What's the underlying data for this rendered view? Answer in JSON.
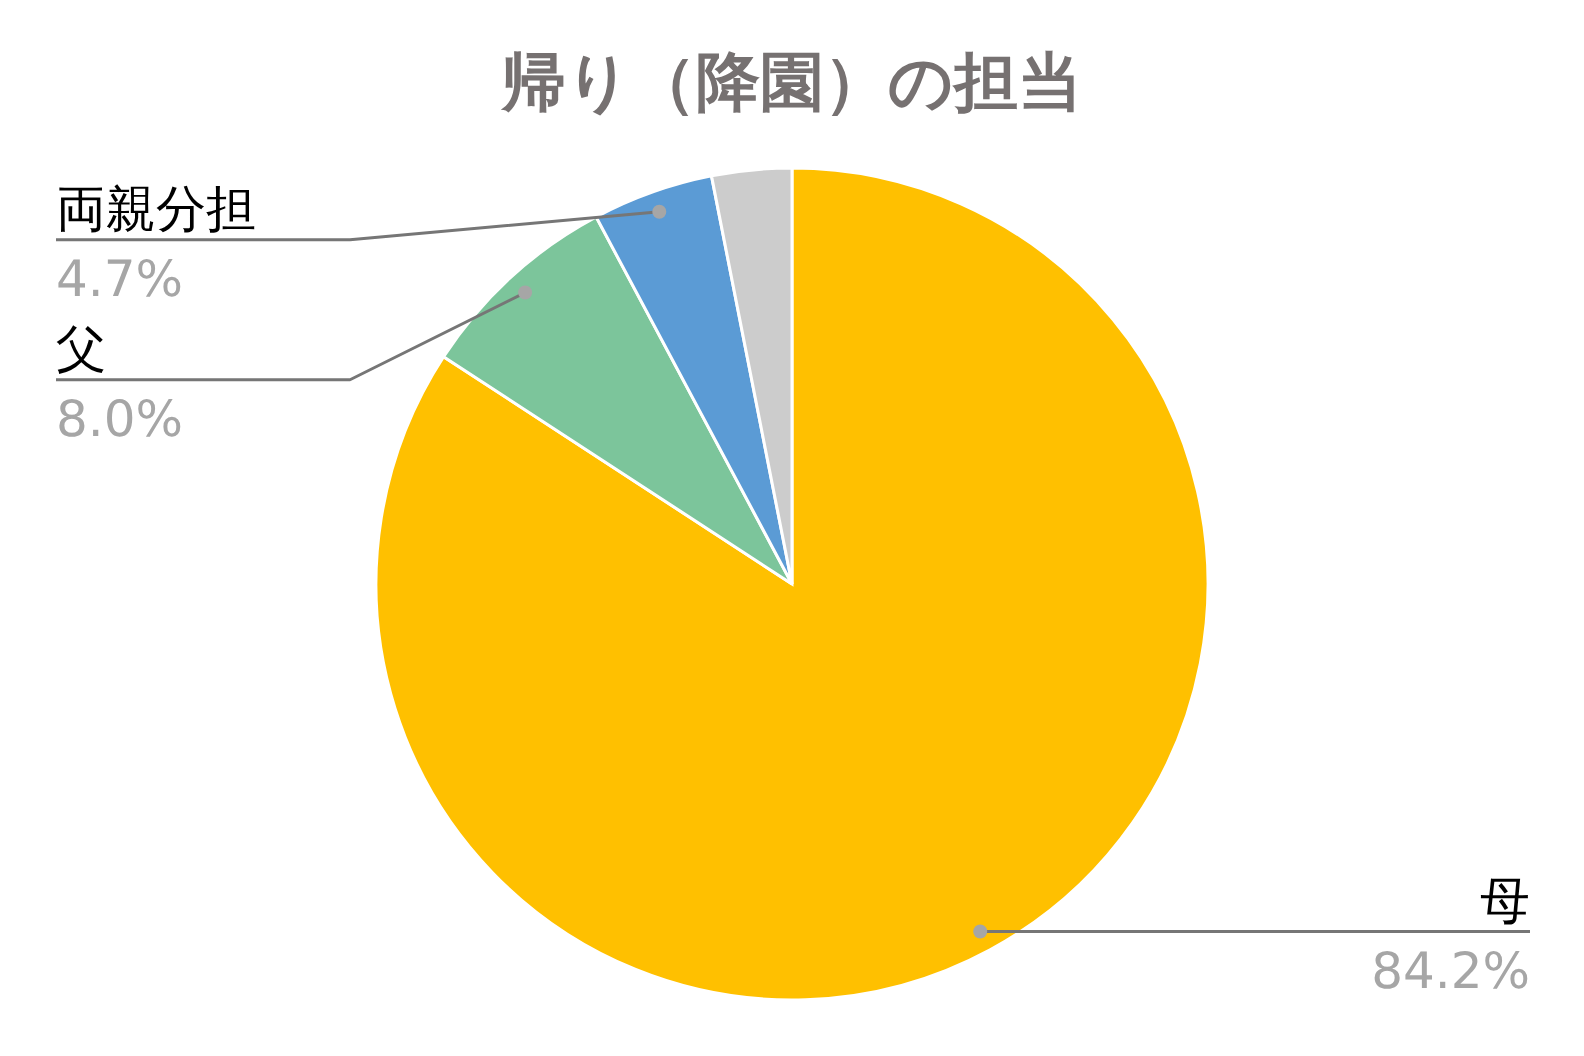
{
  "chart_data": {
    "type": "pie",
    "title": "帰り（降園）の担当",
    "categories": [
      "母",
      "父",
      "両親分担",
      null
    ],
    "values": [
      84.2,
      8.0,
      4.7,
      3.1
    ],
    "colors": [
      "#ffc000",
      "#7cc59b",
      "#5b9bd5",
      "#cccccc"
    ],
    "value_labels": [
      "84.2%",
      "8.0%",
      "4.7%",
      null
    ],
    "legend": false
  }
}
